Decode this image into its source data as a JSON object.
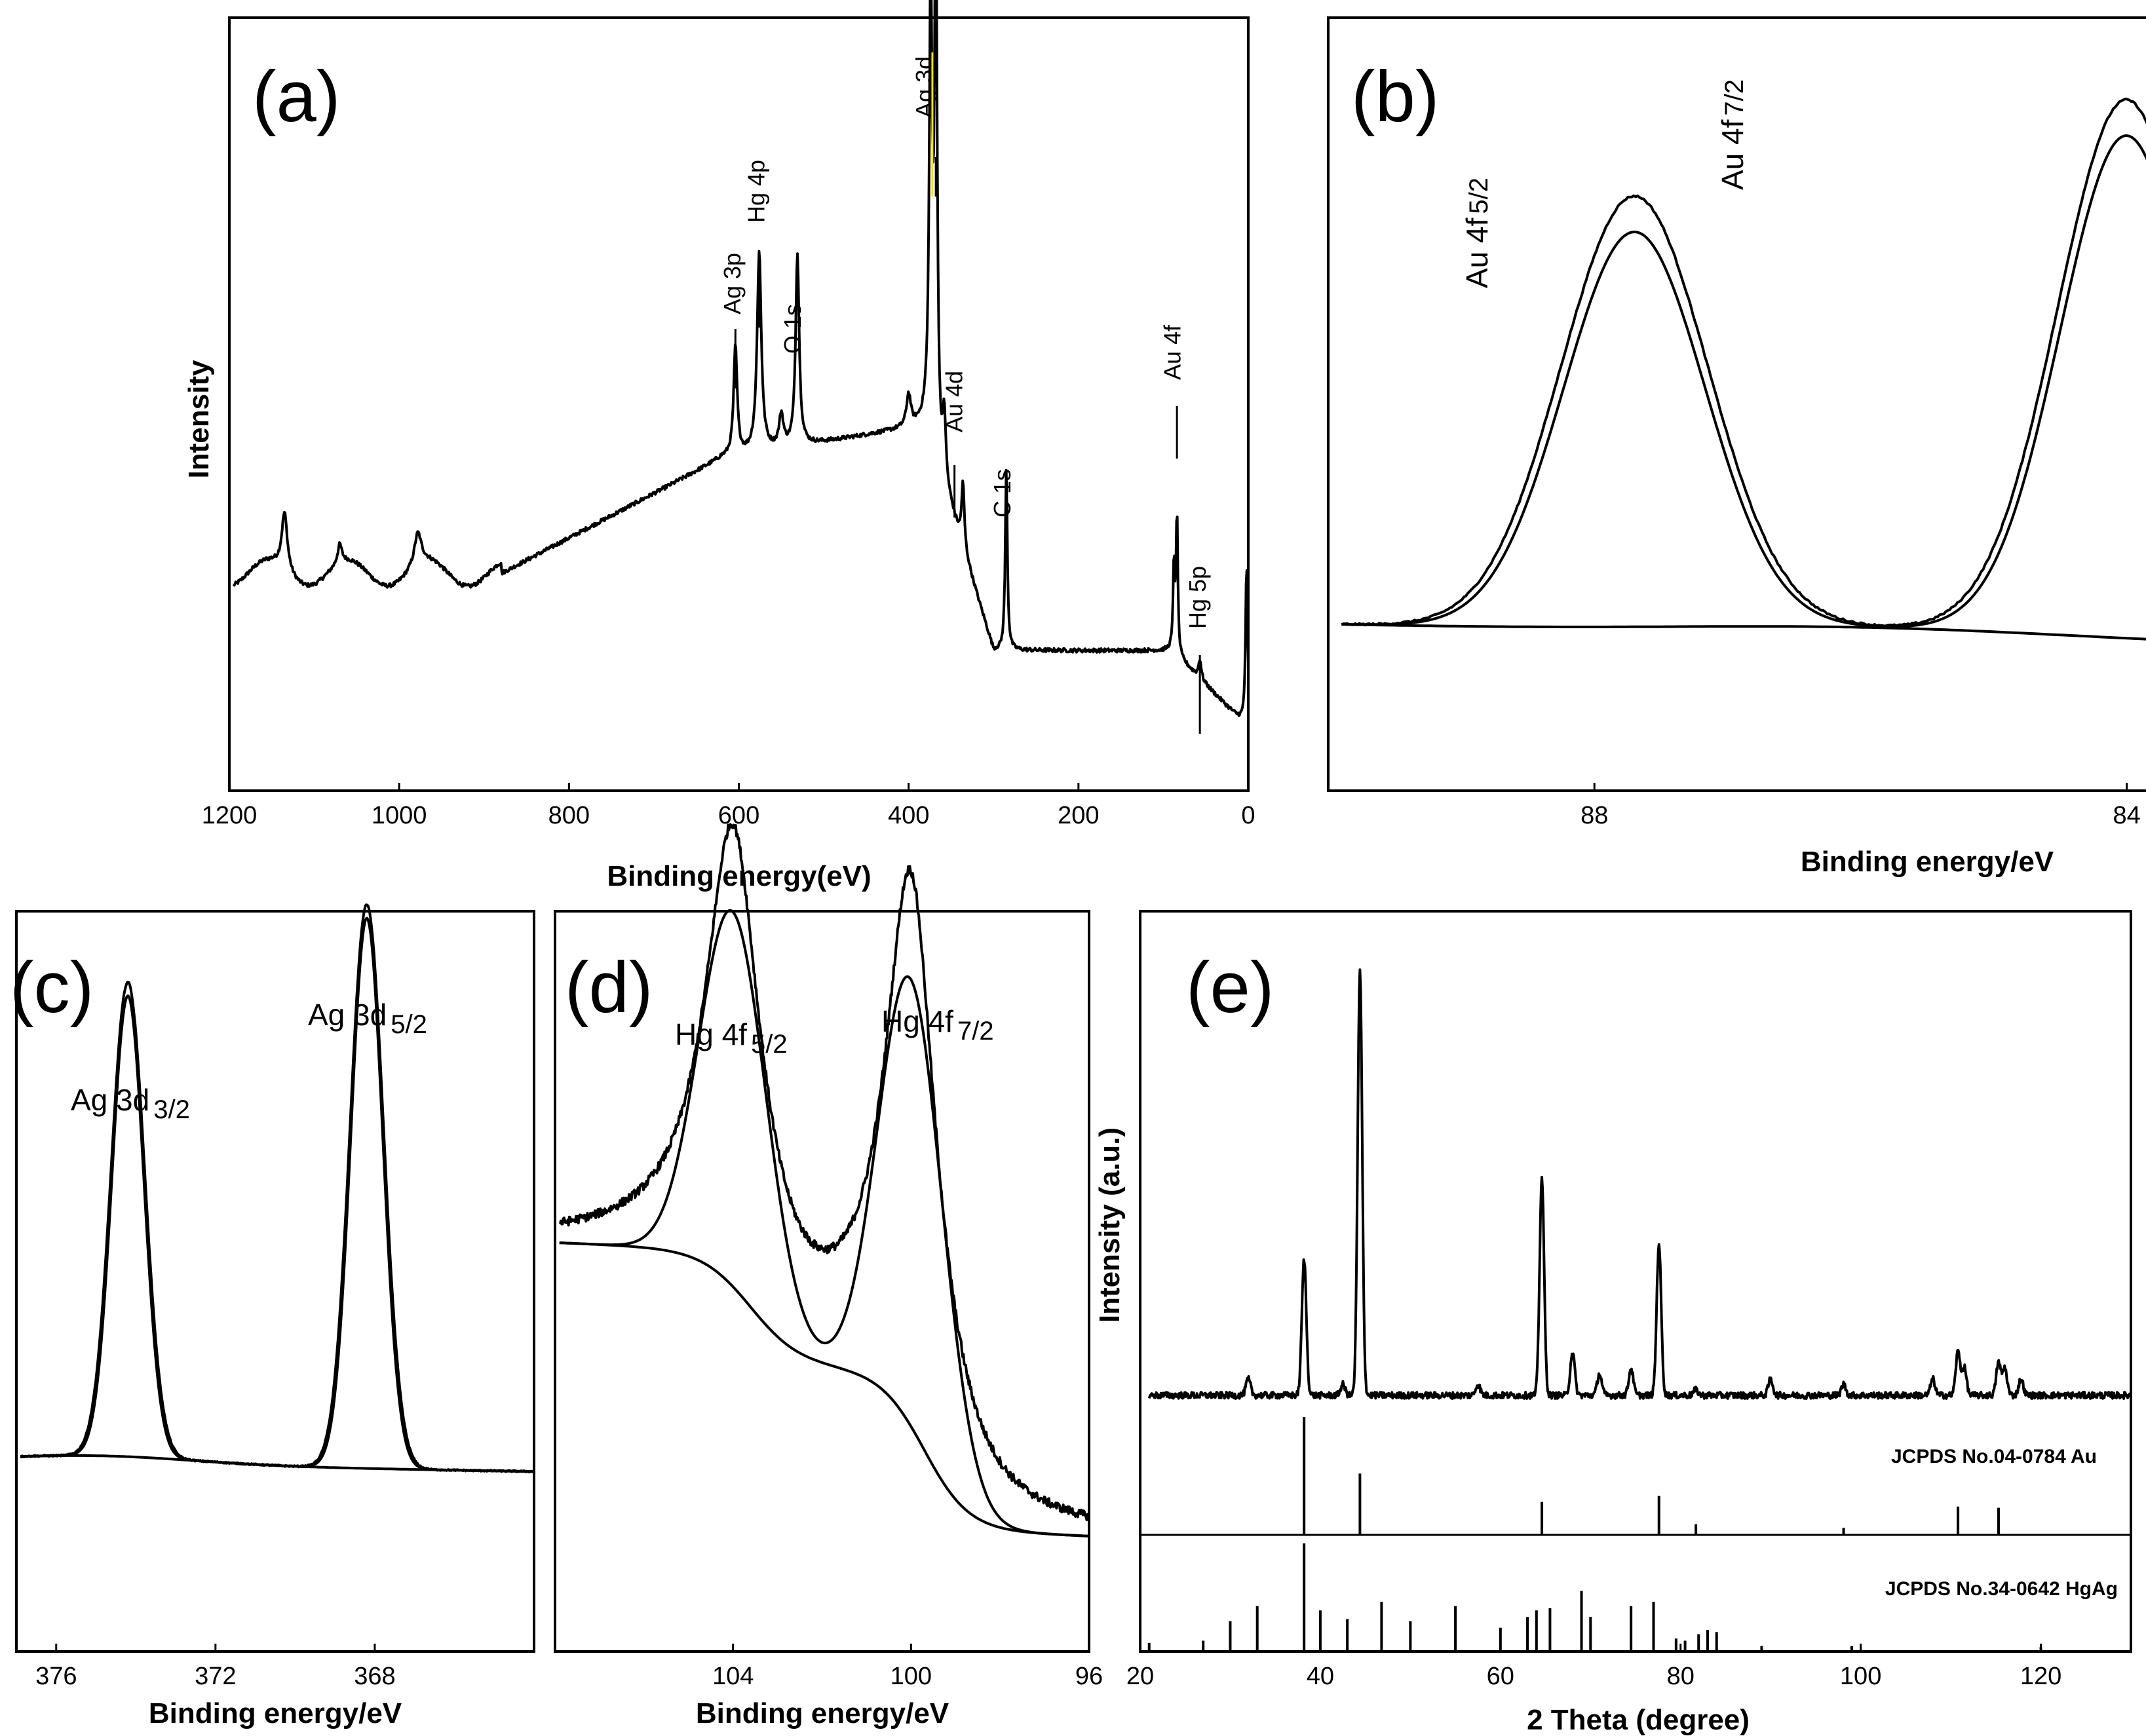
{
  "chart_data": [
    {
      "panel": "(a)",
      "type": "line",
      "xlabel": "Binding energy(eV)",
      "ylabel": "Intensity",
      "xlim": [
        1200,
        0
      ],
      "xticks": [
        "1200",
        "1000",
        "800",
        "600",
        "400",
        "200",
        "0"
      ],
      "peaks": [
        {
          "label": "Ag 3p",
          "x": 604
        },
        {
          "label": "Hg 4p",
          "x": 576
        },
        {
          "label": "O 1s",
          "x": 531
        },
        {
          "label": "Ag 3d",
          "x": 368
        },
        {
          "label": "Au 4d",
          "x": 346
        },
        {
          "label": "C 1s",
          "x": 285
        },
        {
          "label": "Au 4f",
          "x": 84
        },
        {
          "label": "Hg 5p",
          "x": 57
        }
      ]
    },
    {
      "panel": "(b)",
      "type": "line",
      "xlabel": "Binding energy/eV",
      "xlim": [
        90.0,
        81.0
      ],
      "xticks": [
        "88",
        "84"
      ],
      "peaks": [
        {
          "label": "Au 4f",
          "sub": "5/2",
          "x": 87.7
        },
        {
          "label": "Au 4f",
          "sub": "7/2",
          "x": 84.0
        }
      ]
    },
    {
      "panel": "(c)",
      "type": "line",
      "xlabel": "Binding energy/eV",
      "xlim": [
        377.0,
        364.0
      ],
      "xticks": [
        "376",
        "372",
        "368"
      ],
      "peaks": [
        {
          "label": "Ag 3d",
          "sub": "3/2",
          "x": 374.2
        },
        {
          "label": "Ag 3d",
          "sub": "5/2",
          "x": 368.2
        }
      ]
    },
    {
      "panel": "(d)",
      "type": "line",
      "xlabel": "Binding energy/eV",
      "xlim": [
        108.0,
        96.0
      ],
      "xticks": [
        "104",
        "100",
        "96"
      ],
      "peaks": [
        {
          "label": "Hg 4f",
          "sub": "5/2",
          "x": 104.0
        },
        {
          "label": "Hg 4f",
          "sub": "7/2",
          "x": 100.0
        }
      ]
    },
    {
      "panel": "(e)",
      "type": "line",
      "xlabel": "2 Theta (degree)",
      "ylabel": "Intensity (a.u.)",
      "xlim": [
        20,
        130
      ],
      "xticks": [
        "20",
        "40",
        "60",
        "80",
        "100",
        "120"
      ],
      "peaks_2theta": [
        38.2,
        44.4,
        64.6,
        77.6,
        81.7,
        98.1,
        110.8,
        115.3
      ],
      "references": [
        {
          "label": "JCPDS No.04-0784 Au",
          "lines": [
            [
              38.2,
              1.0
            ],
            [
              44.4,
              0.52
            ],
            [
              64.6,
              0.28
            ],
            [
              77.6,
              0.33
            ],
            [
              81.7,
              0.09
            ],
            [
              98.1,
              0.06
            ],
            [
              110.8,
              0.24
            ],
            [
              115.3,
              0.23
            ]
          ]
        },
        {
          "label": "JCPDS No.34-0642 HgAg",
          "lines": [
            [
              21.0,
              0.08
            ],
            [
              27.0,
              0.1
            ],
            [
              30.0,
              0.28
            ],
            [
              33.0,
              0.42
            ],
            [
              38.2,
              1.0
            ],
            [
              40.0,
              0.38
            ],
            [
              43.0,
              0.3
            ],
            [
              46.8,
              0.46
            ],
            [
              50.0,
              0.28
            ],
            [
              55.0,
              0.42
            ],
            [
              60.0,
              0.22
            ],
            [
              63.0,
              0.32
            ],
            [
              64.0,
              0.38
            ],
            [
              65.5,
              0.4
            ],
            [
              69.0,
              0.56
            ],
            [
              70.0,
              0.32
            ],
            [
              74.5,
              0.42
            ],
            [
              77.0,
              0.46
            ],
            [
              79.5,
              0.12
            ],
            [
              80.5,
              0.1
            ],
            [
              82.0,
              0.16
            ],
            [
              83.0,
              0.2
            ],
            [
              84.0,
              0.18
            ],
            [
              89.0,
              0.05
            ],
            [
              99.0,
              0.05
            ],
            [
              120.0,
              0.04
            ]
          ]
        }
      ]
    }
  ]
}
